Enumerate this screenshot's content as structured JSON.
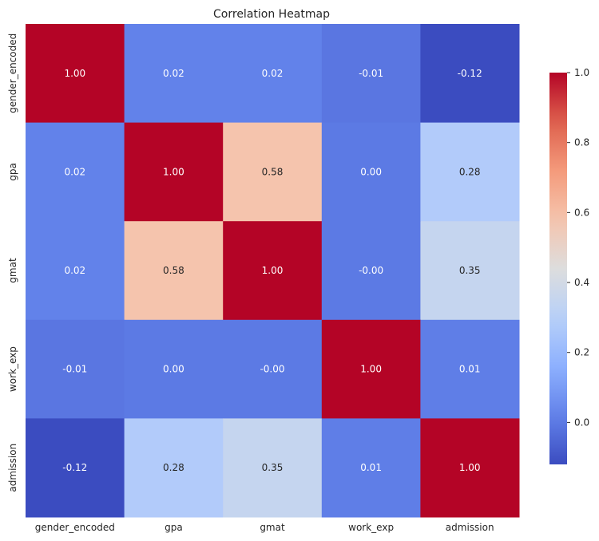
{
  "chart_data": {
    "type": "heatmap",
    "title": "Correlation Heatmap",
    "rows": [
      "gender_encoded",
      "gpa",
      "gmat",
      "work_exp",
      "admission"
    ],
    "columns": [
      "gender_encoded",
      "gpa",
      "gmat",
      "work_exp",
      "admission"
    ],
    "values": [
      [
        1.0,
        0.02,
        0.02,
        -0.01,
        -0.12
      ],
      [
        0.02,
        1.0,
        0.58,
        0.0,
        0.28
      ],
      [
        0.02,
        0.58,
        1.0,
        -0.0,
        0.35
      ],
      [
        -0.01,
        0.0,
        -0.0,
        1.0,
        0.01
      ],
      [
        -0.12,
        0.28,
        0.35,
        0.01,
        1.0
      ]
    ],
    "cell_labels": [
      [
        "1.00",
        "0.02",
        "0.02",
        "-0.01",
        "-0.12"
      ],
      [
        "0.02",
        "1.00",
        "0.58",
        "0.00",
        "0.28"
      ],
      [
        "0.02",
        "0.58",
        "1.00",
        "-0.00",
        "0.35"
      ],
      [
        "-0.01",
        "0.00",
        "-0.00",
        "1.00",
        "0.01"
      ],
      [
        "-0.12",
        "0.28",
        "0.35",
        "0.01",
        "1.00"
      ]
    ],
    "colormap": "coolwarm",
    "colorbar": {
      "range": [
        -0.12,
        1.0
      ],
      "ticks": [
        0.0,
        0.2,
        0.4,
        0.6,
        0.8,
        1.0
      ],
      "tick_labels": [
        "0.0",
        "0.2",
        "0.4",
        "0.6",
        "0.8",
        "1.0"
      ]
    }
  }
}
